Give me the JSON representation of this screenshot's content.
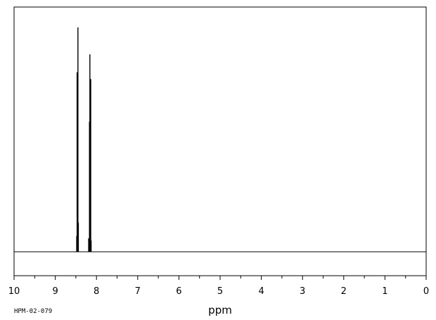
{
  "chart_data": {
    "type": "line",
    "title": "",
    "xlabel": "ppm",
    "ylabel": "",
    "xlim": [
      10,
      0
    ],
    "x_reversed": true,
    "ylim": [
      0,
      1
    ],
    "x_ticks_major": [
      10,
      9,
      8,
      7,
      6,
      5,
      4,
      3,
      2,
      1,
      0
    ],
    "tick_labels": [
      "10",
      "9",
      "8",
      "7",
      "6",
      "5",
      "4",
      "3",
      "2",
      "1",
      "0"
    ],
    "x_ticks_minor_step": 0.5,
    "grid": false,
    "legend": "none",
    "series": [
      {
        "peaks": [
          {
            "ppm": 8.48,
            "intensity": 0.07
          },
          {
            "ppm": 8.47,
            "intensity": 0.8
          },
          {
            "ppm": 8.45,
            "intensity": 1.0
          },
          {
            "ppm": 8.44,
            "intensity": 0.13
          },
          {
            "ppm": 8.19,
            "intensity": 0.06
          },
          {
            "ppm": 8.17,
            "intensity": 0.58
          },
          {
            "ppm": 8.16,
            "intensity": 0.88
          },
          {
            "ppm": 8.14,
            "intensity": 0.77
          },
          {
            "ppm": 8.13,
            "intensity": 0.05
          }
        ]
      }
    ],
    "line_color": "#000000"
  },
  "footer": {
    "code": "HPM-02-079"
  }
}
